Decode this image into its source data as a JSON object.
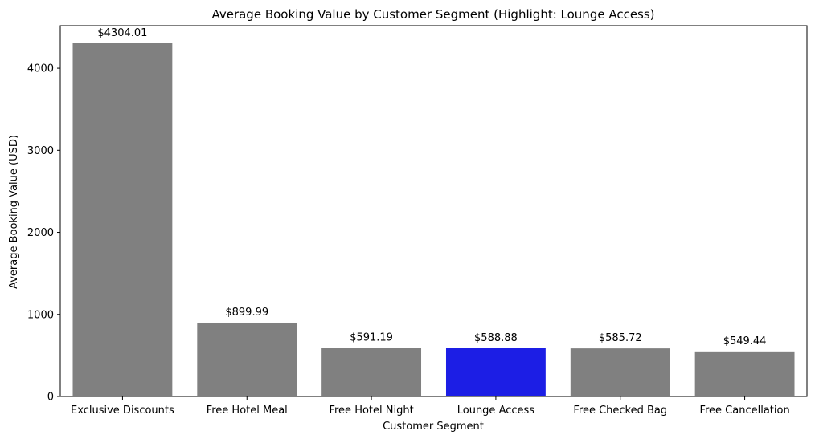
{
  "chart_data": {
    "type": "bar",
    "title": "Average Booking Value by Customer Segment (Highlight: Lounge Access)",
    "xlabel": "Customer Segment",
    "ylabel": "Average Booking Value (USD)",
    "categories": [
      "Exclusive Discounts",
      "Free Hotel Meal",
      "Free Hotel Night",
      "Lounge Access",
      "Free Checked Bag",
      "Free Cancellation"
    ],
    "values": [
      4304.01,
      899.99,
      591.19,
      588.88,
      585.72,
      549.44
    ],
    "value_labels": [
      "$4304.01",
      "$899.99",
      "$591.19",
      "$588.88",
      "$585.72",
      "$549.44"
    ],
    "highlight": "Lounge Access",
    "ylim": [
      0,
      4519.2
    ],
    "yticks": [
      0,
      1000,
      2000,
      3000,
      4000
    ],
    "ytick_labels": [
      "0",
      "1000",
      "2000",
      "3000",
      "4000"
    ],
    "grid": false,
    "colors": {
      "default": "#808080",
      "highlight": "#1c1ee5"
    }
  }
}
